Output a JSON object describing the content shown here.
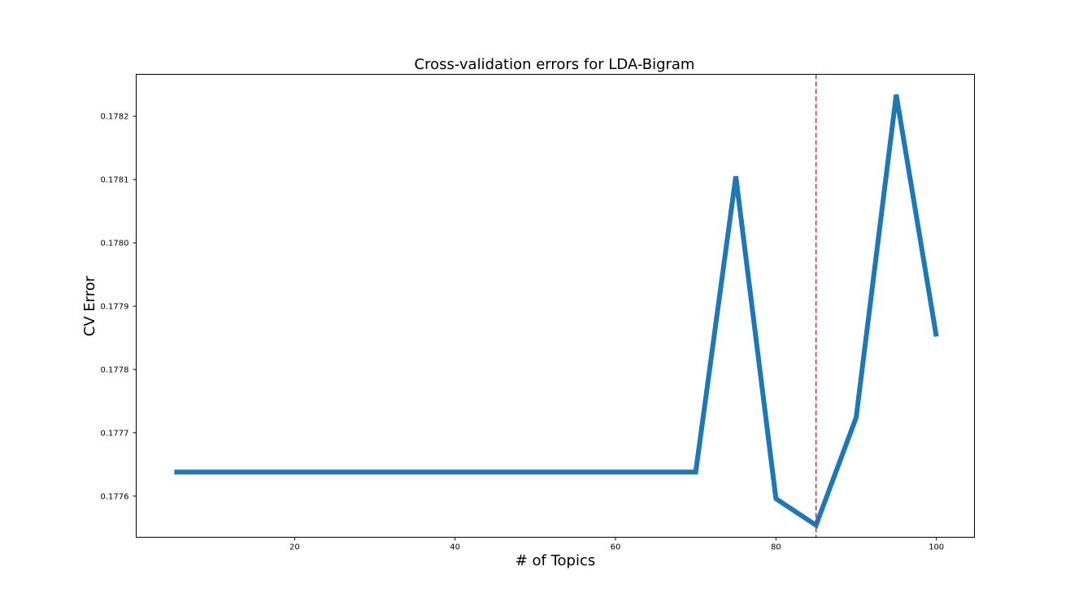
{
  "chart_data": {
    "type": "line",
    "title": "Cross-validation errors for LDA-Bigram",
    "xlabel": "# of Topics",
    "ylabel": "CV Error",
    "xlim": [
      0.25,
      104.75
    ],
    "ylim": [
      0.177535,
      0.1782662
    ],
    "xticks": [
      20,
      40,
      60,
      80,
      100
    ],
    "xtick_labels": [
      "20",
      "40",
      "60",
      "80",
      "100"
    ],
    "yticks": [
      0.1776,
      0.1777,
      0.1778,
      0.1779,
      0.178,
      0.1781,
      0.1782
    ],
    "ytick_labels": [
      "0.1776",
      "0.1777",
      "0.1778",
      "0.1779",
      "0.1780",
      "0.1781",
      "0.1782"
    ],
    "grid": false,
    "series": [
      {
        "x": [
          5,
          10,
          15,
          20,
          25,
          30,
          35,
          40,
          45,
          50,
          55,
          60,
          65,
          70,
          75,
          80,
          85,
          90,
          95,
          100
        ],
        "y": [
          0.177638,
          0.177638,
          0.177638,
          0.177638,
          0.177638,
          0.177638,
          0.177638,
          0.177638,
          0.177638,
          0.177638,
          0.177638,
          0.177638,
          0.177638,
          0.177638,
          0.178105,
          0.177596,
          0.177554,
          0.177724,
          0.178234,
          0.177852
        ],
        "color": "#1f77b4"
      }
    ],
    "reference_lines": [
      {
        "orientation": "vertical",
        "x": 85,
        "color": "#d62728",
        "style": "dashed"
      }
    ]
  }
}
